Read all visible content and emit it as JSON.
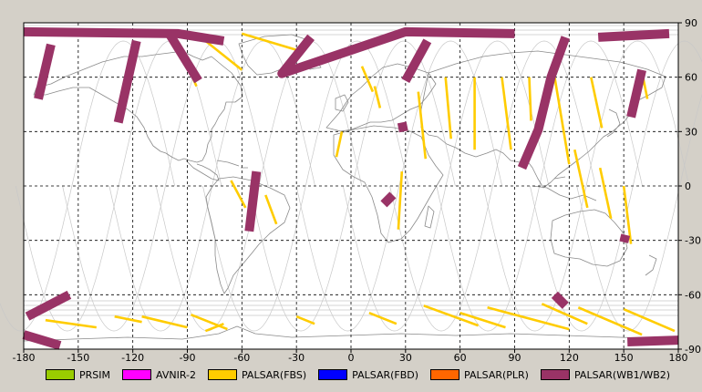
{
  "map": {
    "x_ticks": [
      "-180",
      "-150",
      "-120",
      "-90",
      "-60",
      "-30",
      "0",
      "30",
      "60",
      "90",
      "120",
      "150",
      "180"
    ],
    "y_ticks": [
      "90",
      "60",
      "30",
      "0",
      "-30",
      "-60",
      "-90"
    ],
    "colors": {
      "background": "#ffffff",
      "frame": "#d4d0c8",
      "grid": "#000000",
      "orbit": "#c8c8c8",
      "coast": "#8a8a8a"
    }
  },
  "legend": [
    {
      "label": "PRSIM",
      "color": "#99cc00"
    },
    {
      "label": "AVNIR-2",
      "color": "#ff00ff"
    },
    {
      "label": "PALSAR(FBS)",
      "color": "#ffcc00"
    },
    {
      "label": "PALSAR(FBD)",
      "color": "#0000ff"
    },
    {
      "label": "PALSAR(PLR)",
      "color": "#ff6600"
    },
    {
      "label": "PALSAR(WB1/WB2)",
      "color": "#993366"
    }
  ],
  "chart_data": {
    "type": "map",
    "projection": "equirectangular",
    "xlim": [
      -180,
      180
    ],
    "ylim": [
      -90,
      90
    ],
    "grid": true,
    "wb_swaths": [
      [
        [
          -180,
          85
        ],
        [
          -95,
          84
        ],
        [
          -70,
          80
        ]
      ],
      [
        [
          -165,
          78
        ],
        [
          -172,
          48
        ]
      ],
      [
        [
          -118,
          80
        ],
        [
          -128,
          35
        ]
      ],
      [
        [
          -22,
          82
        ],
        [
          -38,
          62
        ],
        [
          30,
          85
        ],
        [
          90,
          84
        ]
      ],
      [
        [
          -84,
          58
        ],
        [
          -100,
          84
        ]
      ],
      [
        [
          42,
          80
        ],
        [
          30,
          58
        ]
      ],
      [
        [
          118,
          82
        ],
        [
          110,
          60
        ],
        [
          103,
          31
        ],
        [
          94,
          10
        ]
      ],
      [
        [
          175,
          84
        ],
        [
          136,
          82
        ]
      ],
      [
        [
          160,
          64
        ],
        [
          154,
          38
        ]
      ],
      [
        [
          28,
          35
        ],
        [
          29,
          30
        ]
      ],
      [
        [
          -52,
          8
        ],
        [
          -56,
          -25
        ]
      ],
      [
        [
          23,
          -5
        ],
        [
          18,
          -10
        ]
      ],
      [
        [
          -178,
          -72
        ],
        [
          -155,
          -60
        ]
      ],
      [
        [
          -180,
          -82
        ],
        [
          -160,
          -88
        ]
      ],
      [
        [
          112,
          -60
        ],
        [
          118,
          -66
        ]
      ],
      [
        [
          151,
          -27
        ],
        [
          150,
          -31
        ]
      ],
      [
        [
          152,
          -86
        ],
        [
          180,
          -85
        ]
      ]
    ],
    "fbs_swaths": [
      [
        [
          -60,
          84
        ],
        [
          -30,
          75
        ]
      ],
      [
        [
          -80,
          80
        ],
        [
          -60,
          64
        ]
      ],
      [
        [
          -85,
          55
        ],
        [
          -88,
          62
        ]
      ],
      [
        [
          -66,
          3
        ],
        [
          -58,
          -12
        ]
      ],
      [
        [
          -47,
          -5
        ],
        [
          -41,
          -21
        ]
      ],
      [
        [
          -5,
          30
        ],
        [
          -8,
          16
        ]
      ],
      [
        [
          6,
          66
        ],
        [
          12,
          52
        ]
      ],
      [
        [
          13,
          55
        ],
        [
          16,
          43
        ]
      ],
      [
        [
          28,
          8
        ],
        [
          26,
          -24
        ]
      ],
      [
        [
          37,
          52
        ],
        [
          41,
          15
        ]
      ],
      [
        [
          52,
          60
        ],
        [
          55,
          26
        ]
      ],
      [
        [
          68,
          60
        ],
        [
          68,
          20
        ]
      ],
      [
        [
          83,
          60
        ],
        [
          88,
          20
        ]
      ],
      [
        [
          98,
          60
        ],
        [
          99,
          36
        ]
      ],
      [
        [
          112,
          60
        ],
        [
          120,
          12
        ]
      ],
      [
        [
          123,
          20
        ],
        [
          130,
          -12
        ]
      ],
      [
        [
          132,
          60
        ],
        [
          138,
          32
        ]
      ],
      [
        [
          137,
          10
        ],
        [
          143,
          -18
        ]
      ],
      [
        [
          150,
          0
        ],
        [
          154,
          -32
        ]
      ],
      [
        [
          160,
          63
        ],
        [
          163,
          48
        ]
      ],
      [
        [
          -168,
          -74
        ],
        [
          -140,
          -78
        ]
      ],
      [
        [
          -130,
          -72
        ],
        [
          -115,
          -75
        ]
      ],
      [
        [
          -115,
          -72
        ],
        [
          -90,
          -78
        ]
      ],
      [
        [
          -88,
          -71
        ],
        [
          -68,
          -79
        ]
      ],
      [
        [
          -70,
          -76
        ],
        [
          -80,
          -80
        ]
      ],
      [
        [
          -30,
          -72
        ],
        [
          -20,
          -76
        ]
      ],
      [
        [
          10,
          -70
        ],
        [
          25,
          -76
        ]
      ],
      [
        [
          40,
          -66
        ],
        [
          70,
          -77
        ]
      ],
      [
        [
          60,
          -70
        ],
        [
          85,
          -78
        ]
      ],
      [
        [
          75,
          -67
        ],
        [
          120,
          -79
        ]
      ],
      [
        [
          105,
          -65
        ],
        [
          130,
          -76
        ]
      ],
      [
        [
          125,
          -67
        ],
        [
          160,
          -82
        ]
      ],
      [
        [
          150,
          -68
        ],
        [
          178,
          -80
        ]
      ]
    ]
  }
}
